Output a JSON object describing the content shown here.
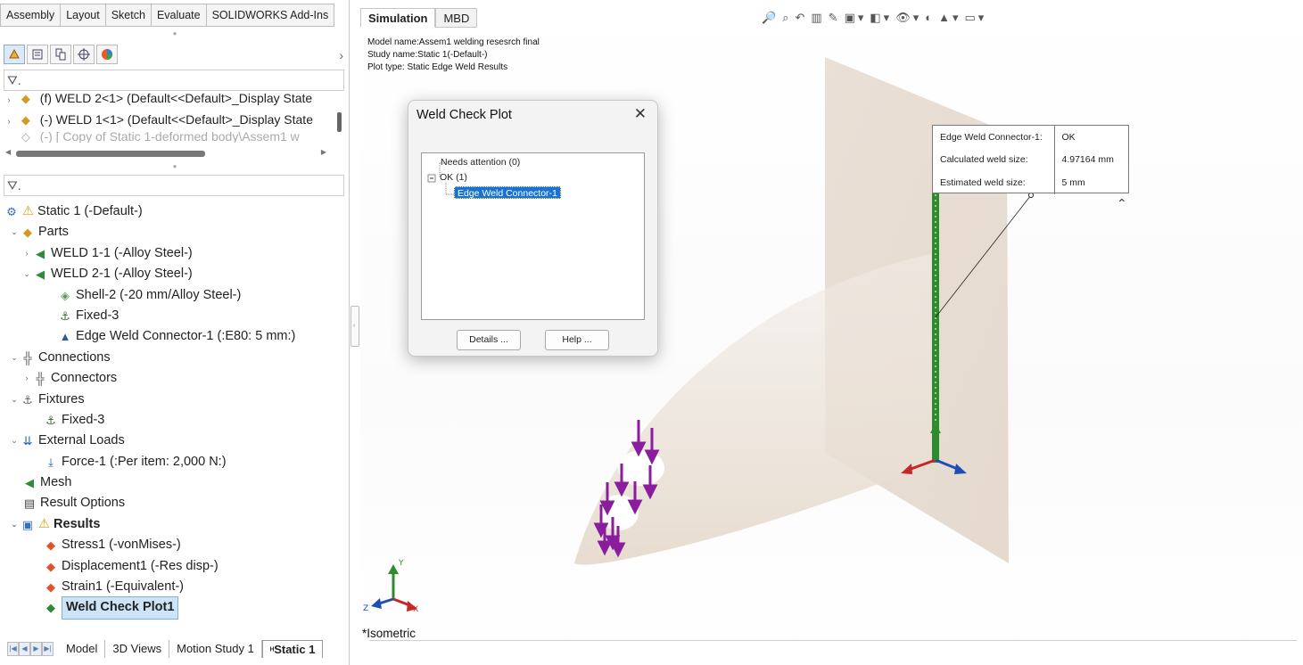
{
  "command_tabs": [
    "Assembly",
    "Layout",
    "Sketch",
    "Evaluate",
    "SOLIDWORKS Add-Ins"
  ],
  "manager_icons": [
    "feature-manager-icon",
    "property-manager-icon",
    "configuration-manager-icon",
    "dimxpert-icon",
    "display-manager-icon"
  ],
  "upper_tree": [
    "(f) WELD 2<1> (Default<<Default>_Display State",
    "(-) WELD 1<1> (Default<<Default>_Display State",
    "(-) [ Copy of Static 1-deformed body\\Assem1 w"
  ],
  "study_tree": {
    "study": "Static 1 (-Default-)",
    "parts": "Parts",
    "weld11": "WELD 1-1 (-Alloy Steel-)",
    "weld21": "WELD 2-1 (-Alloy Steel-)",
    "shell2": "Shell-2 (-20 mm/Alloy Steel-)",
    "fixed3a": "Fixed-3",
    "edge_weld": "Edge Weld Connector-1 (:E80: 5 mm:)",
    "connections": "Connections",
    "connectors": "Connectors",
    "fixtures": "Fixtures",
    "fixed3b": "Fixed-3",
    "external_loads": "External Loads",
    "force1": "Force-1 (:Per item: 2,000 N:)",
    "mesh": "Mesh",
    "result_options": "Result Options",
    "results": "Results",
    "stress1": "Stress1 (-vonMises-)",
    "displacement1": "Displacement1 (-Res disp-)",
    "strain1": "Strain1 (-Equivalent-)",
    "weld_check_plot1": "Weld Check Plot1"
  },
  "bottom_tabs": [
    "Model",
    "3D Views",
    "Motion Study 1",
    "Static 1"
  ],
  "graphics_tabs": [
    "Simulation",
    "MBD"
  ],
  "model_info": {
    "model_name": "Model name:Assem1 welding resesrch final",
    "study_name": "Study name:Static 1(-Default-)",
    "plot_type": "Plot type: Static Edge Weld Results"
  },
  "dialog": {
    "title": "Weld Check Plot",
    "close": "✕",
    "needs_attention": "Needs attention (0)",
    "ok": "OK (1)",
    "connector": "Edge Weld Connector-1",
    "details_button": "Details ...",
    "help_button": "Help ..."
  },
  "annotation": {
    "connector_label": "Edge Weld Connector-1:",
    "connector_value": "OK",
    "calc_label": "Calculated weld size:",
    "calc_value": "4.97164 mm",
    "est_label": "Estimated weld size:",
    "est_value": "5 mm"
  },
  "triad": {
    "x": "X",
    "y": "Y",
    "z": "Z"
  },
  "view_name": "*Isometric",
  "colors": {
    "accent_blue": "#2b79d0",
    "load_purple": "#8a1c9e",
    "weld_green": "#2e8b2e",
    "plate": "#e7dcd2"
  }
}
